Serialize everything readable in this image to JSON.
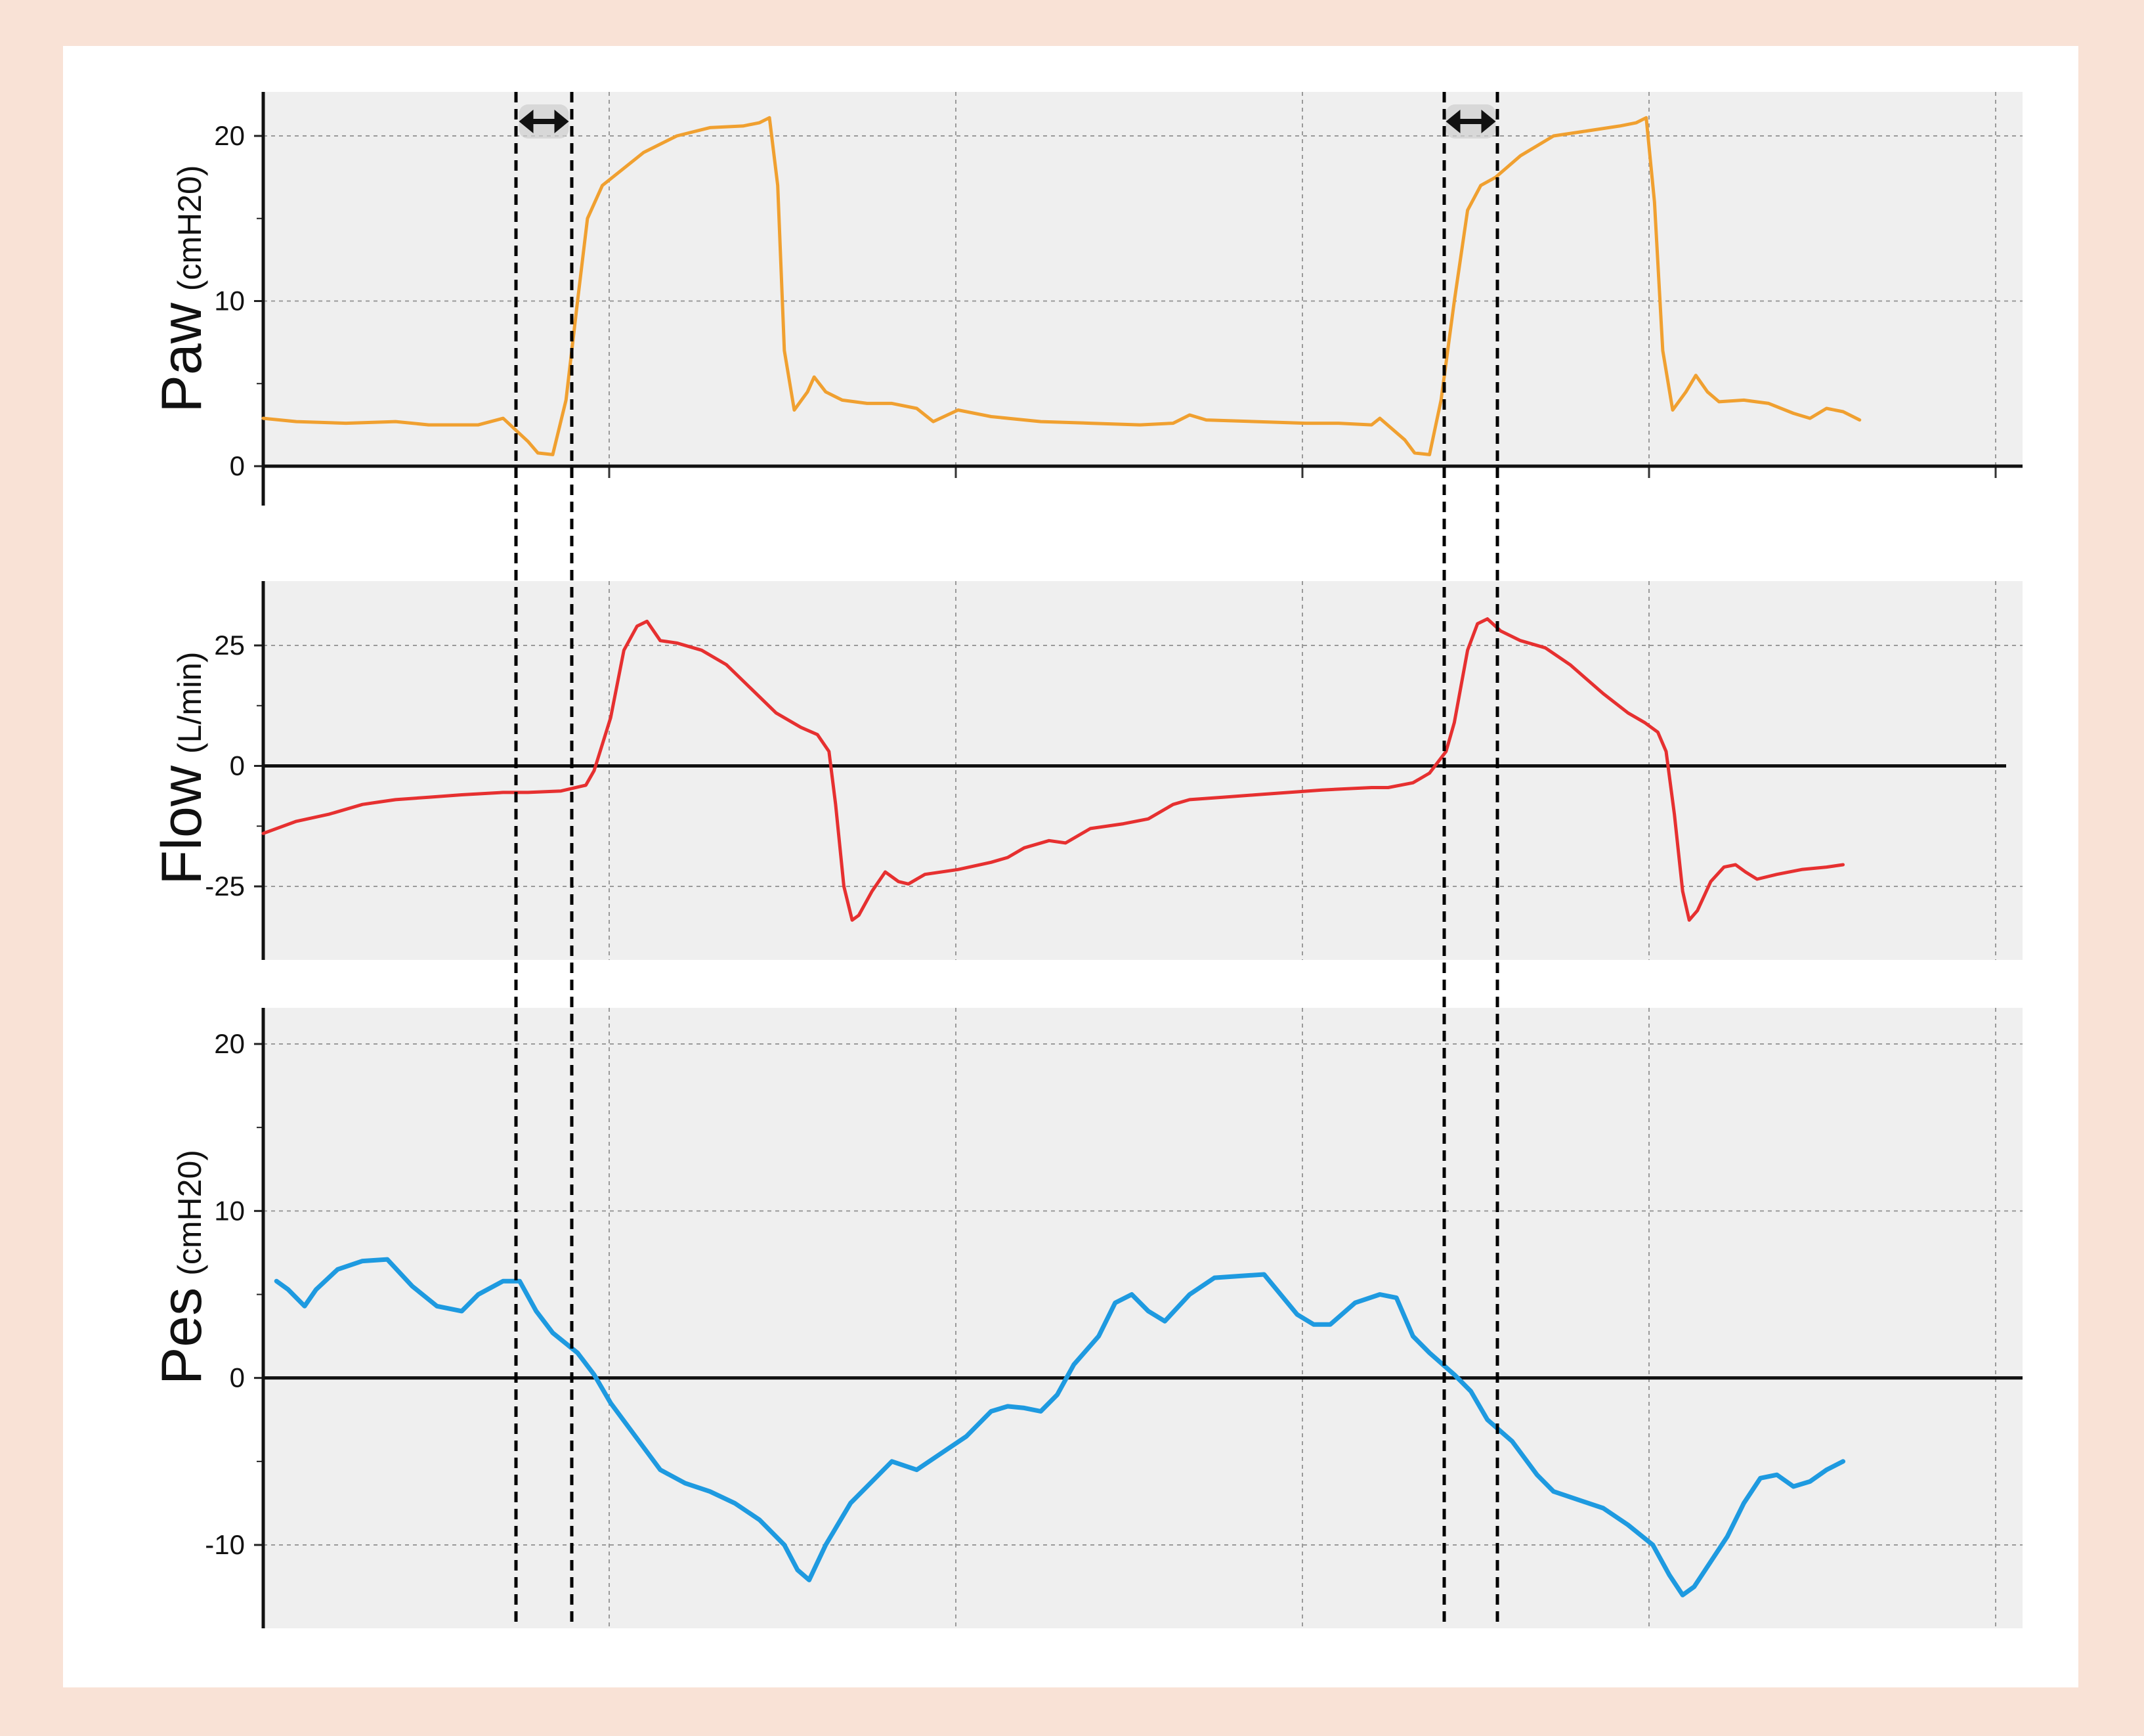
{
  "colors": {
    "page_border": "#f9e2d6",
    "panel_background": "#ffffff",
    "plot_background": "#efefef",
    "grid": "#9a9a9a",
    "marker": "#000000"
  },
  "markers": {
    "type": "dashed vertical lines with double-arrow icons",
    "icon": "double-arrow-icon"
  },
  "chart_data": [
    {
      "type": "line",
      "ylabel": "Paw",
      "yunit": "(cmH20)",
      "yticks": [
        "0",
        "10",
        "20"
      ],
      "ylim": [
        0,
        22.5
      ],
      "xlim": [
        0,
        100
      ],
      "grid": true,
      "series": [
        {
          "color": "#f0a030",
          "points": [
            [
              0,
              2.9
            ],
            [
              2,
              2.7
            ],
            [
              5,
              2.6
            ],
            [
              8,
              2.7
            ],
            [
              10,
              2.5
            ],
            [
              13,
              2.5
            ],
            [
              14.5,
              2.9
            ],
            [
              16,
              1.5
            ],
            [
              16.6,
              0.8
            ],
            [
              17.5,
              0.7
            ],
            [
              18.3,
              4
            ],
            [
              19,
              10
            ],
            [
              19.6,
              15
            ],
            [
              20.5,
              17
            ],
            [
              21.5,
              17.8
            ],
            [
              23,
              19
            ],
            [
              25,
              20
            ],
            [
              27,
              20.5
            ],
            [
              29,
              20.6
            ],
            [
              30,
              20.8
            ],
            [
              30.6,
              21.1
            ],
            [
              31.1,
              17
            ],
            [
              31.5,
              7
            ],
            [
              32.1,
              3.4
            ],
            [
              32.9,
              4.5
            ],
            [
              33.3,
              5.4
            ],
            [
              34,
              4.5
            ],
            [
              35,
              4
            ],
            [
              36.5,
              3.8
            ],
            [
              38,
              3.8
            ],
            [
              39.5,
              3.5
            ],
            [
              40.5,
              2.7
            ],
            [
              42,
              3.4
            ],
            [
              44,
              3
            ],
            [
              47,
              2.7
            ],
            [
              50,
              2.6
            ],
            [
              53,
              2.5
            ],
            [
              55,
              2.6
            ],
            [
              56,
              3.1
            ],
            [
              57,
              2.8
            ],
            [
              60,
              2.7
            ],
            [
              63,
              2.6
            ],
            [
              65,
              2.6
            ],
            [
              67,
              2.5
            ],
            [
              67.5,
              2.9
            ],
            [
              69,
              1.6
            ],
            [
              69.6,
              0.8
            ],
            [
              70.5,
              0.7
            ],
            [
              71.2,
              4
            ],
            [
              72,
              10
            ],
            [
              72.8,
              15.5
            ],
            [
              73.6,
              17
            ],
            [
              74.5,
              17.5
            ],
            [
              76,
              18.8
            ],
            [
              78,
              20
            ],
            [
              80,
              20.3
            ],
            [
              82,
              20.6
            ],
            [
              83,
              20.8
            ],
            [
              83.6,
              21.1
            ],
            [
              84.1,
              16
            ],
            [
              84.6,
              7
            ],
            [
              85.2,
              3.4
            ],
            [
              86,
              4.5
            ],
            [
              86.6,
              5.5
            ],
            [
              87.3,
              4.5
            ],
            [
              88,
              3.9
            ],
            [
              89.5,
              4
            ],
            [
              91,
              3.8
            ],
            [
              92.5,
              3.2
            ],
            [
              93.5,
              2.9
            ],
            [
              94.5,
              3.5
            ],
            [
              95.5,
              3.3
            ],
            [
              96.5,
              2.8
            ]
          ]
        }
      ]
    },
    {
      "type": "line",
      "ylabel": "Flow",
      "yunit": "(L/min)",
      "yticks": [
        "-25",
        "0",
        "25"
      ],
      "ylim": [
        -40,
        40
      ],
      "xlim": [
        0,
        100
      ],
      "grid": true,
      "series": [
        {
          "color": "#e63030",
          "points": [
            [
              0,
              -14
            ],
            [
              2,
              -11.5
            ],
            [
              4,
              -10
            ],
            [
              6,
              -8
            ],
            [
              7,
              -7.5
            ],
            [
              8,
              -7
            ],
            [
              10,
              -6.5
            ],
            [
              12,
              -6
            ],
            [
              14.5,
              -5.5
            ],
            [
              16,
              -5.5
            ],
            [
              18,
              -5.2
            ],
            [
              19.5,
              -4
            ],
            [
              20,
              -1
            ],
            [
              21,
              10
            ],
            [
              21.8,
              24
            ],
            [
              22.6,
              29
            ],
            [
              23.2,
              30
            ],
            [
              24,
              26
            ],
            [
              25,
              25.5
            ],
            [
              26.5,
              24
            ],
            [
              28,
              21
            ],
            [
              29.5,
              16
            ],
            [
              31,
              11
            ],
            [
              32.5,
              8
            ],
            [
              33.5,
              6.5
            ],
            [
              34.2,
              3
            ],
            [
              34.6,
              -8
            ],
            [
              35.1,
              -25
            ],
            [
              35.6,
              -32
            ],
            [
              36,
              -31
            ],
            [
              36.8,
              -26
            ],
            [
              37.6,
              -22
            ],
            [
              38.4,
              -24
            ],
            [
              39,
              -24.5
            ],
            [
              40,
              -22.5
            ],
            [
              42,
              -21.5
            ],
            [
              44,
              -20
            ],
            [
              45,
              -19
            ],
            [
              46,
              -17
            ],
            [
              47.5,
              -15.5
            ],
            [
              48.5,
              -16
            ],
            [
              50,
              -13
            ],
            [
              52,
              -12
            ],
            [
              53.5,
              -11
            ],
            [
              55,
              -8
            ],
            [
              56,
              -7
            ],
            [
              58,
              -6.5
            ],
            [
              60,
              -6
            ],
            [
              62,
              -5.5
            ],
            [
              64,
              -5
            ],
            [
              67,
              -4.5
            ],
            [
              68,
              -4.5
            ],
            [
              69.5,
              -3.5
            ],
            [
              70.5,
              -1.5
            ],
            [
              71.5,
              3
            ],
            [
              72,
              9
            ],
            [
              72.8,
              24
            ],
            [
              73.4,
              29.5
            ],
            [
              74,
              30.5
            ],
            [
              74.8,
              28
            ],
            [
              76,
              26
            ],
            [
              77.5,
              24.5
            ],
            [
              79,
              21
            ],
            [
              81,
              15
            ],
            [
              82.5,
              11
            ],
            [
              83.5,
              9
            ],
            [
              84.3,
              7
            ],
            [
              84.8,
              3
            ],
            [
              85.3,
              -10
            ],
            [
              85.8,
              -26
            ],
            [
              86.2,
              -32
            ],
            [
              86.7,
              -30
            ],
            [
              87.5,
              -24
            ],
            [
              88.3,
              -21
            ],
            [
              89,
              -20.5
            ],
            [
              89.6,
              -22
            ],
            [
              90.3,
              -23.5
            ],
            [
              91.5,
              -22.5
            ],
            [
              93,
              -21.5
            ],
            [
              94.5,
              -21
            ],
            [
              95.5,
              -20.5
            ]
          ]
        }
      ]
    },
    {
      "type": "line",
      "ylabel": "Pes",
      "yunit": "(cmH20)",
      "yticks": [
        "-10",
        "0",
        "10",
        "20"
      ],
      "ylim": [
        -15.5,
        22
      ],
      "xlim": [
        0,
        100
      ],
      "grid": true,
      "series": [
        {
          "color": "#1e9ae0",
          "points": [
            [
              0.8,
              5.8
            ],
            [
              1.5,
              5.3
            ],
            [
              2.5,
              4.3
            ],
            [
              3.2,
              5.3
            ],
            [
              4.5,
              6.5
            ],
            [
              6,
              7
            ],
            [
              7.5,
              7.1
            ],
            [
              9,
              5.5
            ],
            [
              10.5,
              4.3
            ],
            [
              12,
              4
            ],
            [
              13,
              5
            ],
            [
              14.5,
              5.8
            ],
            [
              15.5,
              5.8
            ],
            [
              16.5,
              4
            ],
            [
              17.5,
              2.7
            ],
            [
              19,
              1.5
            ],
            [
              20,
              0.2
            ],
            [
              21,
              -1.5
            ],
            [
              22.5,
              -3.5
            ],
            [
              24,
              -5.5
            ],
            [
              25.5,
              -6.3
            ],
            [
              27,
              -6.8
            ],
            [
              28.5,
              -7.5
            ],
            [
              30,
              -8.5
            ],
            [
              31.5,
              -10
            ],
            [
              32.3,
              -11.5
            ],
            [
              33,
              -12.1
            ],
            [
              34,
              -10
            ],
            [
              35.5,
              -7.5
            ],
            [
              37,
              -6
            ],
            [
              38,
              -5
            ],
            [
              39.5,
              -5.5
            ],
            [
              41,
              -4.5
            ],
            [
              42.5,
              -3.5
            ],
            [
              44,
              -2
            ],
            [
              45,
              -1.7
            ],
            [
              46,
              -1.8
            ],
            [
              47,
              -2
            ],
            [
              48,
              -1
            ],
            [
              49,
              0.8
            ],
            [
              50.5,
              2.5
            ],
            [
              51.5,
              4.5
            ],
            [
              52.5,
              5
            ],
            [
              53.5,
              4
            ],
            [
              54.5,
              3.4
            ],
            [
              56,
              5
            ],
            [
              57.5,
              6
            ],
            [
              59,
              6.1
            ],
            [
              60.5,
              6.2
            ],
            [
              61.5,
              5
            ],
            [
              62.5,
              3.8
            ],
            [
              63.5,
              3.2
            ],
            [
              64.5,
              3.2
            ],
            [
              66,
              4.5
            ],
            [
              67.5,
              5
            ],
            [
              68.5,
              4.8
            ],
            [
              69.5,
              2.5
            ],
            [
              70.5,
              1.5
            ],
            [
              72,
              0.2
            ],
            [
              73,
              -0.8
            ],
            [
              74,
              -2.5
            ],
            [
              75.5,
              -3.8
            ],
            [
              77,
              -5.8
            ],
            [
              78,
              -6.8
            ],
            [
              79.5,
              -7.3
            ],
            [
              81,
              -7.8
            ],
            [
              82.5,
              -8.8
            ],
            [
              84,
              -10
            ],
            [
              85,
              -11.8
            ],
            [
              85.8,
              -13
            ],
            [
              86.5,
              -12.5
            ],
            [
              87.5,
              -11
            ],
            [
              88.5,
              -9.5
            ],
            [
              89.5,
              -7.5
            ],
            [
              90.5,
              -6
            ],
            [
              91.5,
              -5.8
            ],
            [
              92.5,
              -6.5
            ],
            [
              93.5,
              -6.2
            ],
            [
              94.5,
              -5.5
            ],
            [
              95.5,
              -5
            ]
          ]
        }
      ]
    }
  ]
}
